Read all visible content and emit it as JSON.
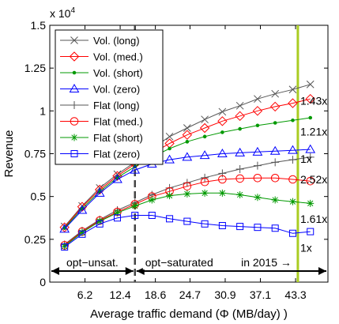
{
  "chart_data": {
    "type": "line",
    "xlabel": "Average traffic demand (Φ (MB/day) )",
    "ylabel": "Revenue",
    "y_multiplier": "x 10",
    "y_multiplier_exp": "4",
    "xlim": [
      0,
      49
    ],
    "ylim": [
      0,
      1.5
    ],
    "x_ticks": [
      6.2,
      12.4,
      18.6,
      24.7,
      30.9,
      37.1,
      43.3
    ],
    "x_tick_labels": [
      "6.2",
      "12.4",
      "18.6",
      "24.7",
      "30.9",
      "37.1",
      "43.3"
    ],
    "y_ticks": [
      0,
      0.25,
      0.5,
      0.75,
      1,
      1.25,
      1.5
    ],
    "y_tick_labels": [
      "0",
      "0.25",
      "0.5",
      "0.75",
      "1",
      "1.25",
      "1.5"
    ],
    "grid": false,
    "legend_position": "top-left",
    "x": [
      2.6,
      5.7,
      8.8,
      11.9,
      15.0,
      18.0,
      21.1,
      24.2,
      27.3,
      30.4,
      33.5,
      36.6,
      39.7,
      42.8,
      45.9
    ],
    "series": [
      {
        "name": "Vol. (long)",
        "color": "#555555",
        "marker": "x",
        "values": [
          0.325,
          0.445,
          0.55,
          0.63,
          0.7,
          0.78,
          0.85,
          0.9,
          0.95,
          0.995,
          1.03,
          1.07,
          1.1,
          1.125,
          1.155
        ]
      },
      {
        "name": "Vol. (med.)",
        "color": "#ff0000",
        "marker": "diamond",
        "values": [
          0.32,
          0.44,
          0.54,
          0.62,
          0.69,
          0.75,
          0.81,
          0.86,
          0.9,
          0.94,
          0.97,
          1.0,
          1.025,
          1.045,
          1.07
        ]
      },
      {
        "name": "Vol. (short)",
        "color": "#009900",
        "marker": "dot",
        "values": [
          0.315,
          0.43,
          0.53,
          0.61,
          0.675,
          0.73,
          0.78,
          0.82,
          0.85,
          0.875,
          0.895,
          0.915,
          0.93,
          0.945,
          0.96
        ]
      },
      {
        "name": "Vol. (zero)",
        "color": "#0000ff",
        "marker": "triangle",
        "values": [
          0.31,
          0.42,
          0.52,
          0.6,
          0.655,
          0.69,
          0.715,
          0.73,
          0.74,
          0.75,
          0.755,
          0.76,
          0.765,
          0.77,
          0.775
        ]
      },
      {
        "name": "Flat (long)",
        "color": "#555555",
        "marker": "plus",
        "values": [
          0.22,
          0.3,
          0.365,
          0.42,
          0.465,
          0.51,
          0.55,
          0.58,
          0.61,
          0.635,
          0.66,
          0.68,
          0.7,
          0.715,
          0.73
        ]
      },
      {
        "name": "Flat (med.)",
        "color": "#ff0000",
        "marker": "circle",
        "values": [
          0.215,
          0.295,
          0.36,
          0.41,
          0.455,
          0.5,
          0.53,
          0.56,
          0.585,
          0.6,
          0.605,
          0.608,
          0.608,
          0.6,
          0.59
        ]
      },
      {
        "name": "Flat (short)",
        "color": "#009900",
        "marker": "star",
        "values": [
          0.21,
          0.29,
          0.355,
          0.405,
          0.445,
          0.48,
          0.505,
          0.515,
          0.52,
          0.52,
          0.51,
          0.495,
          0.48,
          0.47,
          0.46
        ]
      },
      {
        "name": "Flat (zero)",
        "color": "#0000ff",
        "marker": "square",
        "values": [
          0.205,
          0.28,
          0.34,
          0.375,
          0.39,
          0.39,
          0.37,
          0.355,
          0.34,
          0.33,
          0.325,
          0.32,
          0.315,
          0.285,
          0.295
        ]
      }
    ],
    "vertical_lines": [
      {
        "x": 15.0,
        "color": "#444444",
        "style": "dashed"
      },
      {
        "x": 43.7,
        "color": "#aacc22",
        "style": "solid"
      }
    ],
    "ratio_labels": [
      {
        "text": "1.43x",
        "y": 1.06
      },
      {
        "text": "1.21x",
        "y": 0.88
      },
      {
        "text": "1x",
        "y": 0.72
      },
      {
        "text": "2.52x",
        "y": 0.6
      },
      {
        "text": "1.61x",
        "y": 0.37
      },
      {
        "text": "1x",
        "y": 0.2
      }
    ],
    "region_labels": [
      {
        "text": "opt−unsat."
      },
      {
        "text": "opt−saturated"
      },
      {
        "text": "in 2015 →"
      }
    ]
  }
}
